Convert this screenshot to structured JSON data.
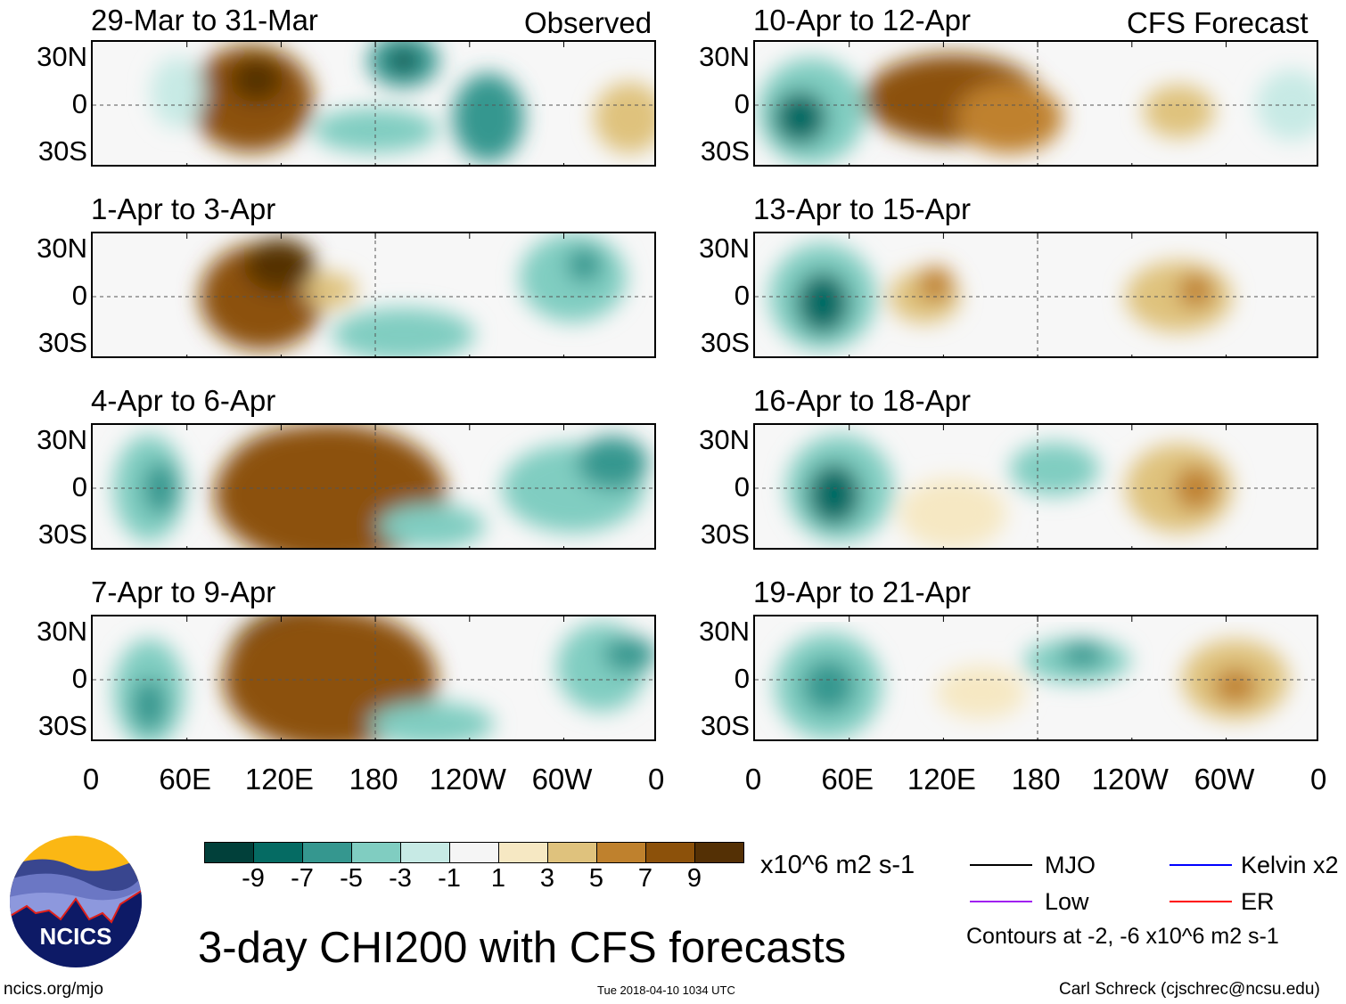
{
  "chart_data": {
    "type": "heatmap",
    "title": "3-day CHI200 with CFS forecasts",
    "units": "x10^6 m2 s-1",
    "observed_label": "Observed",
    "forecast_label": "CFS Forecast",
    "observed_panels": [
      "29-Mar to 31-Mar",
      "1-Apr to 3-Apr",
      "4-Apr to 6-Apr",
      "7-Apr to 9-Apr"
    ],
    "forecast_panels": [
      "10-Apr to 12-Apr",
      "13-Apr to 15-Apr",
      "16-Apr to 18-Apr",
      "19-Apr to 21-Apr"
    ],
    "y_ticks": [
      "30N",
      "0",
      "30S"
    ],
    "x_ticks": [
      "0",
      "60E",
      "120E",
      "180",
      "120W",
      "60W",
      "0"
    ],
    "colorbar": {
      "levels": [
        "-9",
        "-7",
        "-5",
        "-3",
        "-1",
        "1",
        "3",
        "5",
        "7",
        "9"
      ],
      "colors": [
        "#01403a",
        "#056b63",
        "#35978f",
        "#80cdc1",
        "#c7eae5",
        "#f5f5f5",
        "#f6e8c3",
        "#dfc27d",
        "#bf812d",
        "#8c510a",
        "#543005"
      ]
    },
    "legend": [
      {
        "label": "MJO",
        "color": "#000000"
      },
      {
        "label": "Kelvin x2",
        "color": "#0000ff"
      },
      {
        "label": "Low",
        "color": "#a020f0"
      },
      {
        "label": "ER",
        "color": "#ff0000"
      }
    ],
    "contour_note": "Contours at -2, -6 x10^6 m2 s-1"
  },
  "footer": {
    "logo_text": "NCICS",
    "site": "ncics.org/mjo",
    "timestamp": "Tue 2018-04-10 1034 UTC",
    "author": "Carl Schreck (cjschrec@ncsu.edu)"
  }
}
